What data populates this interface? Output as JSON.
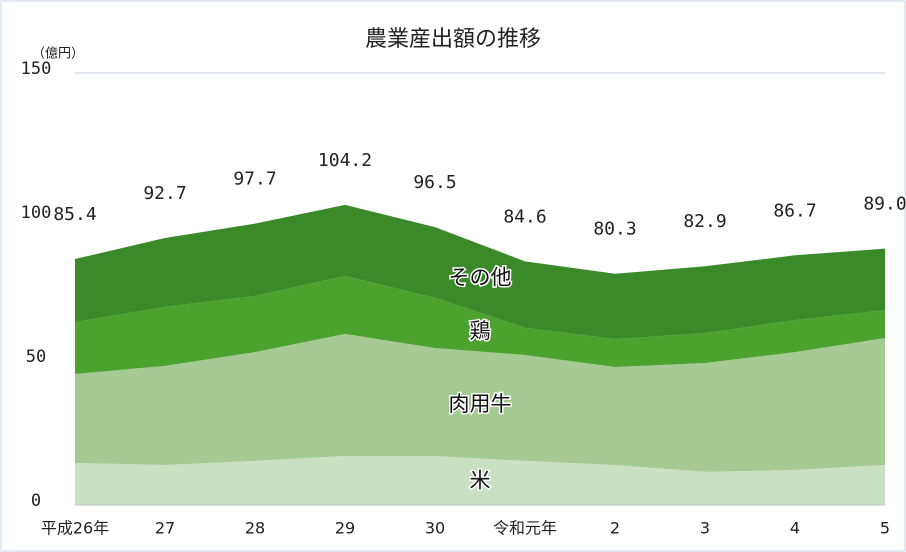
{
  "chart_data": {
    "type": "stacked_area",
    "title": "農業産出額の推移",
    "y_unit_label": "（億円）",
    "categories": [
      "平成26年",
      "27",
      "28",
      "29",
      "30",
      "令和元年",
      "2",
      "3",
      "4",
      "5"
    ],
    "series": [
      {
        "name": "米",
        "color": "#c9e0c1",
        "values": [
          14.6,
          13.9,
          15.3,
          17.0,
          17.0,
          15.3,
          13.9,
          11.5,
          12.2,
          13.9
        ]
      },
      {
        "name": "肉用牛",
        "color": "#a6ca94",
        "values": [
          30.9,
          34.4,
          37.8,
          42.4,
          37.5,
          36.8,
          34.0,
          37.8,
          40.9,
          44.1
        ]
      },
      {
        "name": "鶏",
        "color": "#4ba22e",
        "values": [
          18.0,
          20.5,
          19.5,
          20.1,
          17.4,
          9.4,
          9.7,
          10.4,
          11.1,
          9.7
        ]
      },
      {
        "name": "その他",
        "color": "#3b8a2a",
        "values": [
          21.9,
          23.9,
          25.1,
          24.7,
          24.6,
          23.1,
          22.7,
          23.2,
          22.5,
          21.3
        ]
      }
    ],
    "totals": [
      85.4,
      92.7,
      97.7,
      104.2,
      96.5,
      84.6,
      80.3,
      82.9,
      86.7,
      89.0
    ],
    "value_labels": [
      "85.4",
      "92.7",
      "97.7",
      "104.2",
      "96.5",
      "84.6",
      "80.3",
      "82.9",
      "86.7",
      "89.0"
    ],
    "ylim": [
      0,
      150
    ],
    "yticks": [
      0,
      50,
      100,
      150
    ],
    "grid": false
  }
}
